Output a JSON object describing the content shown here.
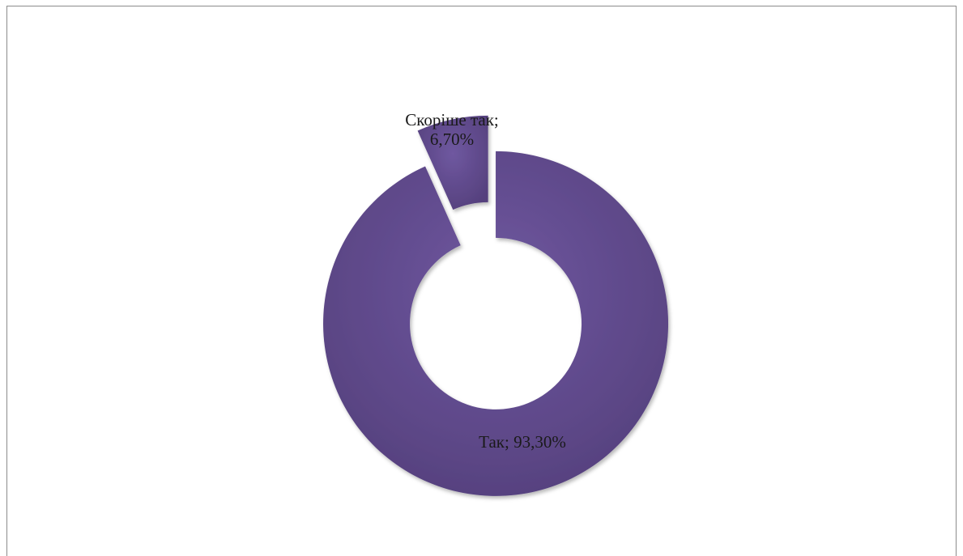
{
  "chart_data": {
    "type": "pie",
    "variant": "doughnut-exploded",
    "categories": [
      "Так",
      "Скоріше так"
    ],
    "values": [
      93.3,
      6.7
    ],
    "colors": [
      "#614a8c",
      "#614a8c"
    ],
    "data_labels": [
      {
        "lines": [
          "Так; 93,30%"
        ]
      },
      {
        "lines": [
          "Скоріше так;",
          "6,70%"
        ]
      }
    ],
    "title": "",
    "legend": "none"
  }
}
